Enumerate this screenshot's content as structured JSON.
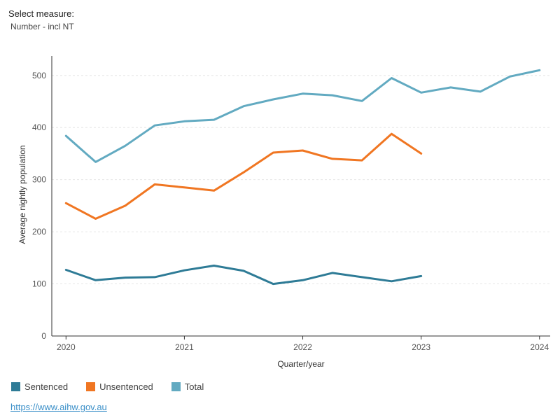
{
  "filter": {
    "label": "Select measure:",
    "value": "Number - incl NT"
  },
  "source_link": "https://www.aihw.gov.au",
  "colors": {
    "Sentenced": "#2e7b96",
    "Unsentenced": "#f07622",
    "Total": "#62aac1"
  },
  "chart_data": {
    "type": "line",
    "xlabel": "Quarter/year",
    "ylabel": "Average nightly population",
    "ylim": [
      0,
      540
    ],
    "yticks": [
      0,
      100,
      200,
      300,
      400,
      500
    ],
    "xlim": [
      2019.88,
      2024.09
    ],
    "xticks": [
      2020,
      2021,
      2022,
      2023,
      2024
    ],
    "grid": true,
    "legend": "bottom",
    "series": [
      {
        "name": "Sentenced",
        "x": [
          2020.0,
          2020.25,
          2020.5,
          2020.75,
          2021.0,
          2021.25,
          2021.5,
          2021.75,
          2022.0,
          2022.25,
          2022.5,
          2022.75,
          2023.0
        ],
        "values": [
          127,
          107,
          112,
          113,
          126,
          135,
          125,
          100,
          107,
          121,
          113,
          105,
          115
        ]
      },
      {
        "name": "Unsentenced",
        "x": [
          2020.0,
          2020.25,
          2020.5,
          2020.75,
          2021.0,
          2021.25,
          2021.5,
          2021.75,
          2022.0,
          2022.25,
          2022.5,
          2022.75,
          2023.0
        ],
        "values": [
          255,
          225,
          250,
          291,
          285,
          279,
          314,
          352,
          356,
          340,
          337,
          388,
          350
        ]
      },
      {
        "name": "Total",
        "x": [
          2020.0,
          2020.25,
          2020.5,
          2020.75,
          2021.0,
          2021.25,
          2021.5,
          2021.75,
          2022.0,
          2022.25,
          2022.5,
          2022.75,
          2023.0,
          2023.25,
          2023.5,
          2023.75,
          2024.0
        ],
        "values": [
          384,
          334,
          365,
          404,
          412,
          415,
          441,
          454,
          465,
          462,
          451,
          495,
          467,
          477,
          469,
          498,
          510
        ]
      }
    ]
  }
}
